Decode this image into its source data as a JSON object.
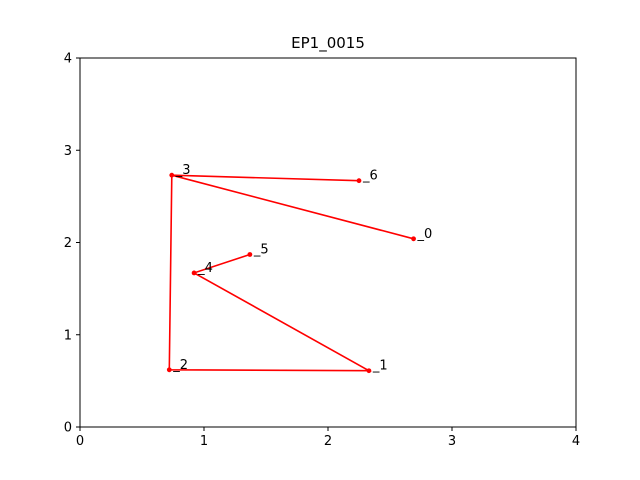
{
  "chart_data": {
    "type": "line",
    "title": "EP1_0015",
    "xlim": [
      0,
      4
    ],
    "ylim": [
      0,
      4
    ],
    "xticks": [
      "0",
      "1",
      "2",
      "3",
      "4"
    ],
    "yticks": [
      "0",
      "1",
      "2",
      "3",
      "4"
    ],
    "grid": false,
    "line_color": "#ff0000",
    "series": [
      {
        "points": [
          {
            "label": "_0",
            "x": 2.69,
            "y": 2.04
          },
          {
            "label": "_1",
            "x": 2.33,
            "y": 0.61
          },
          {
            "label": "_2",
            "x": 0.72,
            "y": 0.62
          },
          {
            "label": "_3",
            "x": 0.74,
            "y": 2.73
          },
          {
            "label": "_4",
            "x": 0.92,
            "y": 1.67
          },
          {
            "label": "_5",
            "x": 1.37,
            "y": 1.87
          },
          {
            "label": "_6",
            "x": 2.25,
            "y": 2.67
          }
        ]
      }
    ],
    "connection_order": [
      "_0",
      "_3",
      "_6"
    ],
    "secondary_order": [
      "_5",
      "_4",
      "_1",
      "_2",
      "_3"
    ]
  }
}
